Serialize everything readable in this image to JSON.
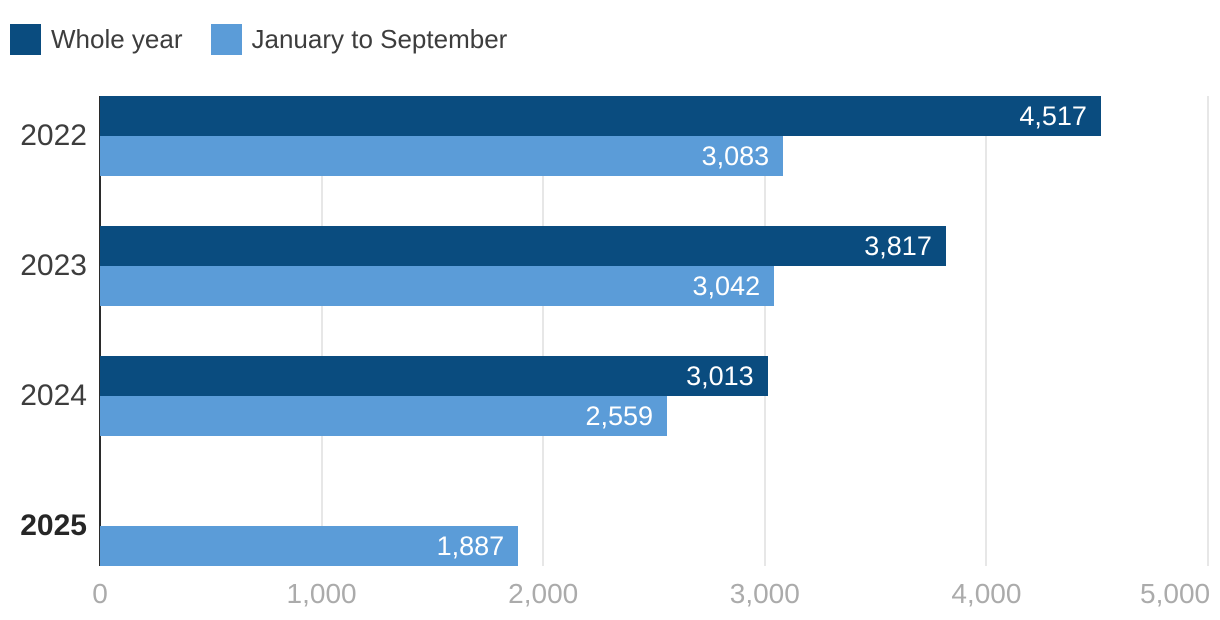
{
  "colors": {
    "whole_year": "#0a4c7f",
    "jan_to_sep": "#5b9cd8",
    "gridline": "#e7e7e7",
    "axis_line": "#2b2b2b",
    "tick_text": "#ababab",
    "category_text": "#3d3d3d",
    "value_text": "#ffffff"
  },
  "legend": {
    "items": [
      {
        "label": "Whole year",
        "color": "#0a4c7f"
      },
      {
        "label": "January to September",
        "color": "#5b9cd8"
      }
    ]
  },
  "chart_data": {
    "type": "bar",
    "orientation": "horizontal",
    "title": "",
    "xlabel": "",
    "ylabel": "",
    "categories": [
      "2022",
      "2023",
      "2024",
      "2025"
    ],
    "highlight_category": "2025",
    "series": [
      {
        "name": "Whole year",
        "color": "#0a4c7f",
        "values": [
          4517,
          3817,
          3013,
          null
        ],
        "labels": [
          "4,517",
          "3,817",
          "3,013",
          null
        ]
      },
      {
        "name": "January to September",
        "color": "#5b9cd8",
        "values": [
          3083,
          3042,
          2559,
          1887
        ],
        "labels": [
          "3,083",
          "3,042",
          "2,559",
          "1,887"
        ]
      }
    ],
    "xlim": [
      0,
      5000
    ],
    "xticks": {
      "values": [
        0,
        1000,
        2000,
        3000,
        4000,
        5000
      ],
      "labels": [
        "0",
        "1,000",
        "2,000",
        "3,000",
        "4,000",
        "5,000"
      ]
    },
    "grid": "vertical",
    "legend_position": "top-left"
  }
}
